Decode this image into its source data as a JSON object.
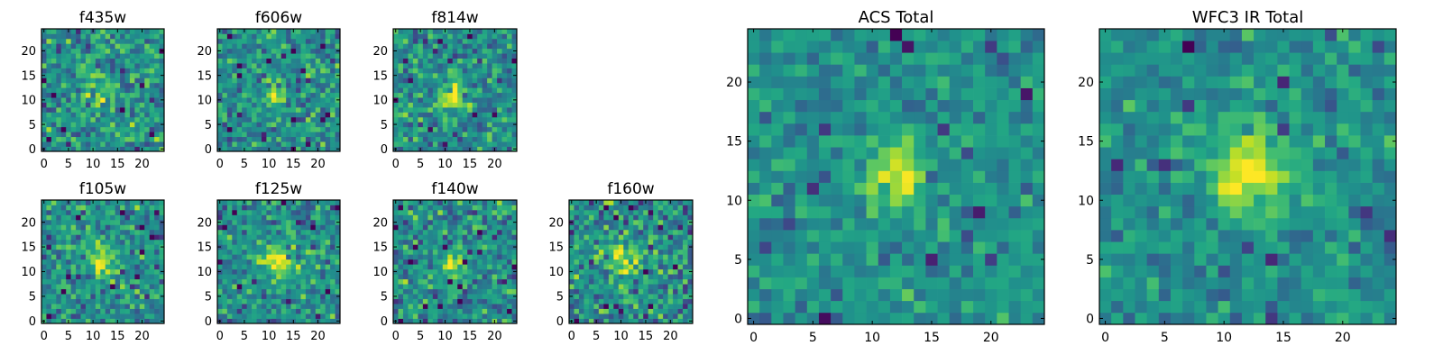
{
  "chart_data": [
    {
      "type": "heatmap",
      "title": "f435w",
      "xlim": [
        0,
        24
      ],
      "ylim": [
        0,
        24
      ],
      "xticks": [
        0,
        5,
        10,
        15,
        20
      ],
      "yticks": [
        0,
        5,
        10,
        15,
        20
      ],
      "colormap": "viridis",
      "seed": 11,
      "center": [
        11,
        12
      ],
      "sigma": 2.6,
      "amp": 0.22,
      "noise": 0.55,
      "grid": false
    },
    {
      "type": "heatmap",
      "title": "f606w",
      "xlim": [
        0,
        24
      ],
      "ylim": [
        0,
        24
      ],
      "xticks": [
        0,
        5,
        10,
        15,
        20
      ],
      "yticks": [
        0,
        5,
        10,
        15,
        20
      ],
      "colormap": "viridis",
      "seed": 23,
      "center": [
        11.5,
        11
      ],
      "sigma": 1.5,
      "amp": 0.45,
      "noise": 0.5,
      "grid": false
    },
    {
      "type": "heatmap",
      "title": "f814w",
      "xlim": [
        0,
        24
      ],
      "ylim": [
        0,
        24
      ],
      "xticks": [
        0,
        5,
        10,
        15,
        20
      ],
      "yticks": [
        0,
        5,
        10,
        15,
        20
      ],
      "colormap": "viridis",
      "seed": 37,
      "center": [
        11.5,
        11
      ],
      "sigma": 2.0,
      "amp": 0.45,
      "noise": 0.5,
      "grid": false
    },
    {
      "type": "heatmap",
      "title": "f105w",
      "xlim": [
        0,
        24
      ],
      "ylim": [
        0,
        24
      ],
      "xticks": [
        0,
        5,
        10,
        15,
        20
      ],
      "yticks": [
        0,
        5,
        10,
        15,
        20
      ],
      "colormap": "viridis",
      "seed": 41,
      "center": [
        11.5,
        12
      ],
      "sigma": 2.2,
      "amp": 0.4,
      "noise": 0.5,
      "grid": false
    },
    {
      "type": "heatmap",
      "title": "f125w",
      "xlim": [
        0,
        24
      ],
      "ylim": [
        0,
        24
      ],
      "xticks": [
        0,
        5,
        10,
        15,
        20
      ],
      "yticks": [
        0,
        5,
        10,
        15,
        20
      ],
      "colormap": "viridis",
      "seed": 53,
      "center": [
        11.5,
        12
      ],
      "sigma": 2.6,
      "amp": 0.4,
      "noise": 0.5,
      "grid": false
    },
    {
      "type": "heatmap",
      "title": "f140w",
      "xlim": [
        0,
        24
      ],
      "ylim": [
        0,
        24
      ],
      "xticks": [
        0,
        5,
        10,
        15,
        20
      ],
      "yticks": [
        0,
        5,
        10,
        15,
        20
      ],
      "colormap": "viridis",
      "seed": 67,
      "center": [
        11.5,
        11
      ],
      "sigma": 2.2,
      "amp": 0.35,
      "noise": 0.55,
      "grid": false
    },
    {
      "type": "heatmap",
      "title": "f160w",
      "xlim": [
        0,
        24
      ],
      "ylim": [
        0,
        24
      ],
      "xticks": [
        0,
        5,
        10,
        15,
        20
      ],
      "yticks": [
        0,
        5,
        10,
        15,
        20
      ],
      "colormap": "viridis",
      "seed": 79,
      "center": [
        11,
        13
      ],
      "sigma": 2.4,
      "amp": 0.35,
      "noise": 0.6,
      "grid": false
    },
    {
      "type": "heatmap",
      "title": "ACS Total",
      "xlim": [
        0,
        24
      ],
      "ylim": [
        0,
        24
      ],
      "xticks": [
        0,
        5,
        10,
        15,
        20
      ],
      "yticks": [
        0,
        5,
        10,
        15,
        20
      ],
      "colormap": "viridis",
      "seed": 97,
      "center": [
        12,
        12
      ],
      "sigma": 1.8,
      "amp": 0.45,
      "noise": 0.35,
      "grid": false
    },
    {
      "type": "heatmap",
      "title": "WFC3 IR Total",
      "xlim": [
        0,
        24
      ],
      "ylim": [
        0,
        24
      ],
      "xticks": [
        0,
        5,
        10,
        15,
        20
      ],
      "yticks": [
        0,
        5,
        10,
        15,
        20
      ],
      "colormap": "viridis",
      "seed": 131,
      "center": [
        12,
        12.5
      ],
      "sigma": 2.6,
      "amp": 0.4,
      "noise": 0.35,
      "grid": false
    }
  ]
}
